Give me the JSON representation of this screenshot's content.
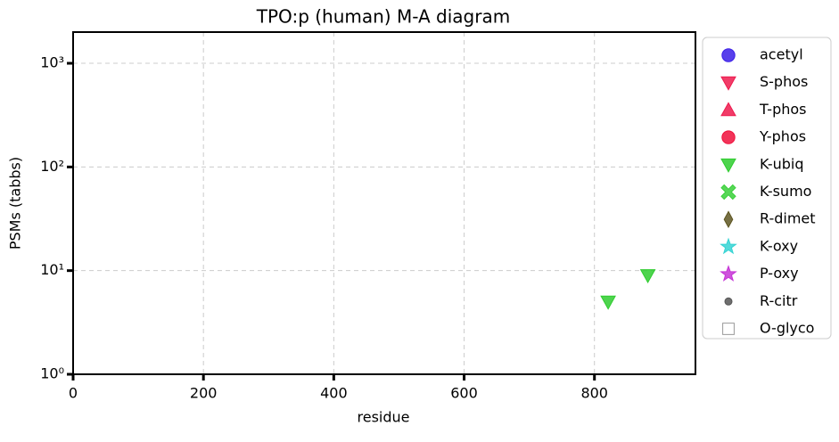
{
  "chart_data": {
    "type": "scatter",
    "title": "TPO:p (human) M-A diagram",
    "xlabel": "residue",
    "ylabel": "PSMs (tabbs)",
    "xlim": [
      0,
      955
    ],
    "xticks": [
      0,
      200,
      400,
      600,
      800
    ],
    "ylim": [
      1,
      2000
    ],
    "yscale": "log",
    "yticks": [
      {
        "value": 1,
        "label": "10⁰"
      },
      {
        "value": 10,
        "label": "10¹"
      },
      {
        "value": 100,
        "label": "10²"
      },
      {
        "value": 1000,
        "label": "10³"
      }
    ],
    "grid": true,
    "legend": "outside right",
    "series": [
      {
        "name": "acetyl",
        "color": "#3b1fe8",
        "marker": "circle",
        "x": [],
        "values": []
      },
      {
        "name": "S-phos",
        "color": "#ee1a4e",
        "marker": "triangle-down",
        "x": [],
        "values": []
      },
      {
        "name": "T-phos",
        "color": "#ee1a4e",
        "marker": "triangle-up",
        "x": [],
        "values": []
      },
      {
        "name": "Y-phos",
        "color": "#f0103c",
        "marker": "circle",
        "x": [],
        "values": []
      },
      {
        "name": "K-ubiq",
        "color": "#2fcc2f",
        "marker": "triangle-down",
        "x": [
          821,
          882
        ],
        "values": [
          5,
          9
        ]
      },
      {
        "name": "K-sumo",
        "color": "#3ad03a",
        "marker": "x",
        "x": [],
        "values": []
      },
      {
        "name": "R-dimet",
        "color": "#5e5622",
        "marker": "diamond",
        "x": [],
        "values": []
      },
      {
        "name": "K-oxy",
        "color": "#35d3d3",
        "marker": "star",
        "x": [],
        "values": []
      },
      {
        "name": "P-oxy",
        "color": "#c634d6",
        "marker": "star",
        "x": [],
        "values": []
      },
      {
        "name": "R-citr",
        "color": "#555555",
        "marker": "dot",
        "x": [],
        "values": []
      },
      {
        "name": "O-glyco",
        "color": "#ffffff",
        "marker": "square",
        "x": [],
        "values": []
      }
    ]
  }
}
